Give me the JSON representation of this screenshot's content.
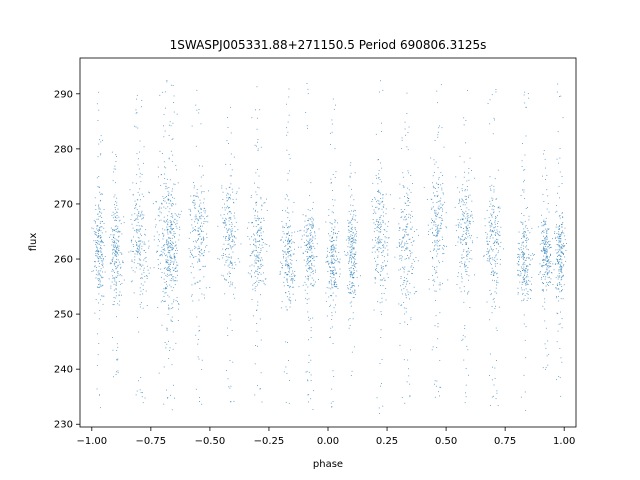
{
  "chart_data": {
    "type": "scatter",
    "title": "1SWASPJ005331.88+271150.5 Period 690806.3125s",
    "xlabel": "phase",
    "ylabel": "flux",
    "xlim": [
      -1.05,
      1.05
    ],
    "ylim": [
      229.5,
      296.5
    ],
    "grid": false,
    "legend": "none",
    "point_color": "#1f77b4",
    "x_ticks": [
      {
        "value": -1.0,
        "label": "−1.00"
      },
      {
        "value": -0.75,
        "label": "−0.75"
      },
      {
        "value": -0.5,
        "label": "−0.50"
      },
      {
        "value": -0.25,
        "label": "−0.25"
      },
      {
        "value": 0.0,
        "label": "0.00"
      },
      {
        "value": 0.25,
        "label": "0.25"
      },
      {
        "value": 0.5,
        "label": "0.50"
      },
      {
        "value": 0.75,
        "label": "0.75"
      },
      {
        "value": 1.0,
        "label": "1.00"
      }
    ],
    "y_ticks": [
      {
        "value": 230,
        "label": "230"
      },
      {
        "value": 240,
        "label": "240"
      },
      {
        "value": 250,
        "label": "250"
      },
      {
        "value": 260,
        "label": "260"
      },
      {
        "value": 270,
        "label": "270"
      },
      {
        "value": 280,
        "label": "280"
      },
      {
        "value": 290,
        "label": "290"
      }
    ],
    "clusters": [
      {
        "phase": -0.97,
        "flux_center": 262,
        "flux_spread": 4,
        "width": 0.012,
        "outlier_range": [
          233,
          293
        ]
      },
      {
        "phase": -0.9,
        "flux_center": 261,
        "flux_spread": 4,
        "width": 0.014,
        "outlier_range": [
          238,
          280
        ]
      },
      {
        "phase": -0.8,
        "flux_center": 264,
        "flux_spread": 5,
        "width": 0.018,
        "outlier_range": [
          232,
          292
        ]
      },
      {
        "phase": -0.69,
        "flux_center": 264,
        "flux_spread": 6,
        "width": 0.02,
        "outlier_range": [
          232,
          293
        ]
      },
      {
        "phase": -0.66,
        "flux_center": 262,
        "flux_spread": 6,
        "width": 0.015,
        "outlier_range": [
          232,
          293
        ]
      },
      {
        "phase": -0.55,
        "flux_center": 265,
        "flux_spread": 5,
        "width": 0.02,
        "outlier_range": [
          233,
          292
        ]
      },
      {
        "phase": -0.42,
        "flux_center": 265,
        "flux_spread": 5,
        "width": 0.018,
        "outlier_range": [
          234,
          290
        ]
      },
      {
        "phase": -0.3,
        "flux_center": 263,
        "flux_spread": 5,
        "width": 0.018,
        "outlier_range": [
          233,
          292
        ]
      },
      {
        "phase": -0.17,
        "flux_center": 260,
        "flux_spread": 4,
        "width": 0.015,
        "outlier_range": [
          232,
          291
        ]
      },
      {
        "phase": -0.08,
        "flux_center": 262,
        "flux_spread": 4,
        "width": 0.015,
        "outlier_range": [
          232,
          293
        ]
      },
      {
        "phase": 0.02,
        "flux_center": 260,
        "flux_spread": 4,
        "width": 0.014,
        "outlier_range": [
          232,
          291
        ]
      },
      {
        "phase": 0.1,
        "flux_center": 261,
        "flux_spread": 4,
        "width": 0.012,
        "outlier_range": [
          238,
          278
        ]
      },
      {
        "phase": 0.22,
        "flux_center": 264,
        "flux_spread": 5,
        "width": 0.018,
        "outlier_range": [
          232,
          293
        ]
      },
      {
        "phase": 0.33,
        "flux_center": 263,
        "flux_spread": 6,
        "width": 0.02,
        "outlier_range": [
          232,
          293
        ]
      },
      {
        "phase": 0.46,
        "flux_center": 266,
        "flux_spread": 5,
        "width": 0.018,
        "outlier_range": [
          234,
          293
        ]
      },
      {
        "phase": 0.58,
        "flux_center": 265,
        "flux_spread": 5,
        "width": 0.018,
        "outlier_range": [
          233,
          291
        ]
      },
      {
        "phase": 0.7,
        "flux_center": 263,
        "flux_spread": 5,
        "width": 0.017,
        "outlier_range": [
          233,
          292
        ]
      },
      {
        "phase": 0.83,
        "flux_center": 260,
        "flux_spread": 4,
        "width": 0.015,
        "outlier_range": [
          232,
          291
        ]
      },
      {
        "phase": 0.92,
        "flux_center": 261,
        "flux_spread": 3,
        "width": 0.012,
        "outlier_range": [
          240,
          280
        ]
      },
      {
        "phase": 0.98,
        "flux_center": 261,
        "flux_spread": 4,
        "width": 0.012,
        "outlier_range": [
          234,
          293
        ]
      }
    ]
  }
}
